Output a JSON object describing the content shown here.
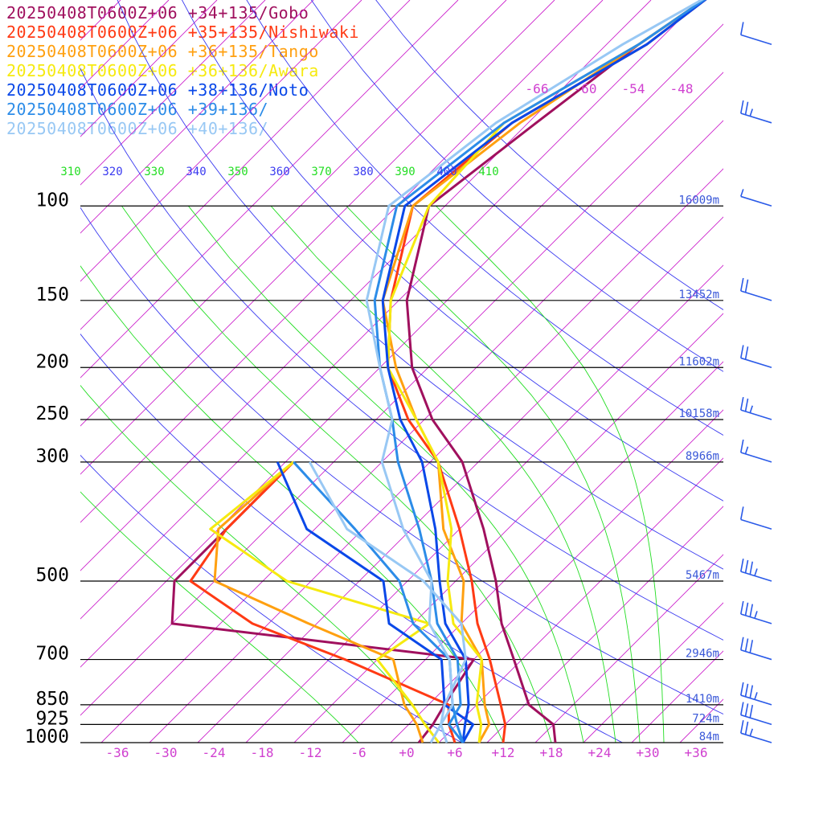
{
  "chart_data": {
    "type": "skew-t",
    "legend_position": "top-left",
    "series": [
      {
        "name": "20250408T0600Z+06 +34+135/Gobo",
        "color": "#a0105e",
        "temp": [
          [
            1000,
            18.5
          ],
          [
            925,
            16
          ],
          [
            850,
            10.5
          ],
          [
            700,
            3
          ],
          [
            600,
            -3
          ],
          [
            500,
            -9
          ],
          [
            400,
            -17
          ],
          [
            300,
            -28
          ],
          [
            250,
            -37
          ],
          [
            200,
            -46
          ],
          [
            150,
            -55
          ],
          [
            100,
            -64
          ],
          [
            70,
            -61
          ],
          [
            50,
            -58
          ],
          [
            40,
            -55
          ]
        ],
        "dew": [
          [
            1000,
            1.5
          ],
          [
            925,
            1
          ],
          [
            850,
            0
          ],
          [
            700,
            -2
          ],
          [
            600,
            -44
          ],
          [
            500,
            -49
          ],
          [
            400,
            -49
          ],
          [
            300,
            -49
          ]
        ]
      },
      {
        "name": "20250408T0600Z+06 +35+135/Nishiwaki",
        "color": "#ff3a14",
        "temp": [
          [
            1000,
            12
          ],
          [
            925,
            10
          ],
          [
            850,
            7
          ],
          [
            700,
            0
          ],
          [
            600,
            -6
          ],
          [
            500,
            -12
          ],
          [
            400,
            -20
          ],
          [
            300,
            -31
          ],
          [
            250,
            -40
          ],
          [
            200,
            -49
          ],
          [
            150,
            -57
          ],
          [
            100,
            -66
          ],
          [
            70,
            -64
          ],
          [
            50,
            -57
          ],
          [
            40,
            -55
          ]
        ],
        "dew": [
          [
            1000,
            6
          ],
          [
            925,
            3
          ],
          [
            850,
            0.5
          ],
          [
            700,
            -18
          ],
          [
            600,
            -34
          ],
          [
            500,
            -47
          ],
          [
            400,
            -49
          ],
          [
            300,
            -49
          ]
        ]
      },
      {
        "name": "20250408T0600Z+06 +36+135/Tango",
        "color": "#ffa010",
        "temp": [
          [
            1000,
            9
          ],
          [
            925,
            8
          ],
          [
            850,
            5
          ],
          [
            700,
            -1
          ],
          [
            600,
            -8
          ],
          [
            500,
            -13
          ],
          [
            400,
            -22
          ],
          [
            300,
            -31
          ],
          [
            250,
            -39
          ],
          [
            200,
            -48
          ],
          [
            150,
            -58
          ],
          [
            100,
            -66
          ],
          [
            70,
            -63
          ],
          [
            50,
            -58
          ],
          [
            40,
            -55
          ]
        ],
        "dew": [
          [
            1000,
            2
          ],
          [
            925,
            -1
          ],
          [
            850,
            -5
          ],
          [
            700,
            -12
          ],
          [
            600,
            -27
          ],
          [
            500,
            -44
          ],
          [
            400,
            -50
          ],
          [
            300,
            -49
          ]
        ]
      },
      {
        "name": "20250408T0600Z+06 +36+136/Awara",
        "color": "#f6ea10",
        "temp": [
          [
            1000,
            9
          ],
          [
            925,
            7
          ],
          [
            850,
            4
          ],
          [
            700,
            -1
          ],
          [
            600,
            -9
          ],
          [
            500,
            -15
          ],
          [
            400,
            -21
          ],
          [
            300,
            -31
          ],
          [
            250,
            -39
          ],
          [
            200,
            -49
          ],
          [
            150,
            -57
          ],
          [
            100,
            -64
          ],
          [
            70,
            -65
          ],
          [
            50,
            -58
          ],
          [
            40,
            -55
          ]
        ],
        "dew": [
          [
            1000,
            4
          ],
          [
            925,
            0
          ],
          [
            850,
            -4
          ],
          [
            700,
            -14
          ],
          [
            600,
            -12
          ],
          [
            500,
            -35
          ],
          [
            400,
            -51
          ],
          [
            300,
            -49
          ]
        ]
      },
      {
        "name": "20250408T0600Z+06 +38+136/Noto",
        "color": "#0a48e8",
        "temp": [
          [
            1000,
            7
          ],
          [
            925,
            5
          ],
          [
            850,
            3
          ],
          [
            700,
            -3
          ],
          [
            600,
            -10
          ],
          [
            500,
            -16
          ],
          [
            400,
            -23
          ],
          [
            300,
            -33
          ],
          [
            250,
            -41
          ],
          [
            200,
            -49
          ],
          [
            150,
            -58
          ],
          [
            100,
            -67
          ],
          [
            70,
            -64
          ],
          [
            50,
            -57
          ],
          [
            40,
            -55
          ]
        ],
        "dew": [
          [
            1000,
            7
          ],
          [
            925,
            6
          ],
          [
            850,
            0
          ],
          [
            700,
            -6
          ],
          [
            600,
            -17
          ],
          [
            500,
            -23
          ],
          [
            400,
            -39
          ],
          [
            300,
            -51
          ]
        ]
      },
      {
        "name": "20250408T0600Z+06 +39+136/",
        "color": "#2c8ce8",
        "temp": [
          [
            1000,
            7
          ],
          [
            925,
            3
          ],
          [
            850,
            2
          ],
          [
            700,
            -4
          ],
          [
            600,
            -11
          ],
          [
            500,
            -17
          ],
          [
            400,
            -25
          ],
          [
            300,
            -36
          ],
          [
            250,
            -42
          ],
          [
            200,
            -50
          ],
          [
            150,
            -59
          ],
          [
            100,
            -68
          ],
          [
            70,
            -65
          ],
          [
            50,
            -58
          ],
          [
            40,
            -55
          ]
        ],
        "dew": [
          [
            1000,
            7
          ],
          [
            925,
            4
          ],
          [
            850,
            1
          ],
          [
            700,
            -5
          ],
          [
            600,
            -14
          ],
          [
            500,
            -21
          ],
          [
            400,
            -33
          ],
          [
            300,
            -49
          ]
        ]
      },
      {
        "name": "20250408T0600Z+06 +40+136/",
        "color": "#98c8f4",
        "temp": [
          [
            1000,
            5
          ],
          [
            925,
            2
          ],
          [
            850,
            1
          ],
          [
            700,
            -5
          ],
          [
            600,
            -12
          ],
          [
            500,
            -17
          ],
          [
            400,
            -27
          ],
          [
            300,
            -38
          ],
          [
            250,
            -42
          ],
          [
            200,
            -50
          ],
          [
            150,
            -60
          ],
          [
            100,
            -69
          ],
          [
            70,
            -66
          ],
          [
            50,
            -60
          ],
          [
            40,
            -55
          ]
        ],
        "dew": [
          [
            1000,
            3
          ],
          [
            925,
            2
          ],
          [
            850,
            0
          ],
          [
            700,
            -3
          ],
          [
            600,
            -8
          ],
          [
            500,
            -18
          ],
          [
            400,
            -34
          ],
          [
            300,
            -47
          ]
        ]
      }
    ],
    "pressure_levels": [
      {
        "p": 100,
        "label": "100",
        "height": "16009m"
      },
      {
        "p": 150,
        "label": "150",
        "height": "13452m"
      },
      {
        "p": 200,
        "label": "200",
        "height": "11602m"
      },
      {
        "p": 250,
        "label": "250",
        "height": "10158m"
      },
      {
        "p": 300,
        "label": "300",
        "height": "8966m"
      },
      {
        "p": 500,
        "label": "500",
        "height": "5467m"
      },
      {
        "p": 700,
        "label": "700",
        "height": "2946m"
      },
      {
        "p": 850,
        "label": "850",
        "height": "1410m"
      },
      {
        "p": 925,
        "label": "925",
        "height": "724m"
      },
      {
        "p": 1000,
        "label": "1000",
        "height": "84m"
      }
    ],
    "x_ticks": [
      {
        "t": -36,
        "label": "-36"
      },
      {
        "t": -30,
        "label": "-30"
      },
      {
        "t": -24,
        "label": "-24"
      },
      {
        "t": -18,
        "label": "-18"
      },
      {
        "t": -12,
        "label": "-12"
      },
      {
        "t": -6,
        "label": "-6"
      },
      {
        "t": 0,
        "label": "+0"
      },
      {
        "t": 6,
        "label": "+6"
      },
      {
        "t": 12,
        "label": "+12"
      },
      {
        "t": 18,
        "label": "+18"
      },
      {
        "t": 24,
        "label": "+24"
      },
      {
        "t": 30,
        "label": "+30"
      },
      {
        "t": 36,
        "label": "+36"
      }
    ],
    "upper_isotherm_labels": [
      "-66",
      "-60",
      "-54",
      "-48"
    ],
    "theta_labels": [
      "310",
      "320",
      "330",
      "340",
      "350",
      "360",
      "370",
      "380",
      "390",
      "400",
      "410"
    ],
    "wind_barbs": [
      {
        "p": 1000,
        "speed_kt": 25
      },
      {
        "p": 925,
        "speed_kt": 30
      },
      {
        "p": 850,
        "speed_kt": 35
      },
      {
        "p": 700,
        "speed_kt": 30
      },
      {
        "p": 600,
        "speed_kt": 35
      },
      {
        "p": 500,
        "speed_kt": 35
      },
      {
        "p": 400,
        "speed_kt": 10
      },
      {
        "p": 300,
        "speed_kt": 15
      },
      {
        "p": 250,
        "speed_kt": 25
      },
      {
        "p": 200,
        "speed_kt": 20
      },
      {
        "p": 150,
        "speed_kt": 20
      },
      {
        "p": 100,
        "speed_kt": 5
      },
      {
        "p": 70,
        "speed_kt": 25
      },
      {
        "p": 50,
        "speed_kt": 10
      }
    ],
    "colors": {
      "isotherm": "#cc22cc",
      "dry_adiabat": "#3a3af0",
      "moist_adiabat": "#22dd22",
      "isobar": "#000000",
      "height_label": "#3a58d8",
      "tick_label": "#d040d0",
      "barb": "#2a5ae8"
    }
  }
}
